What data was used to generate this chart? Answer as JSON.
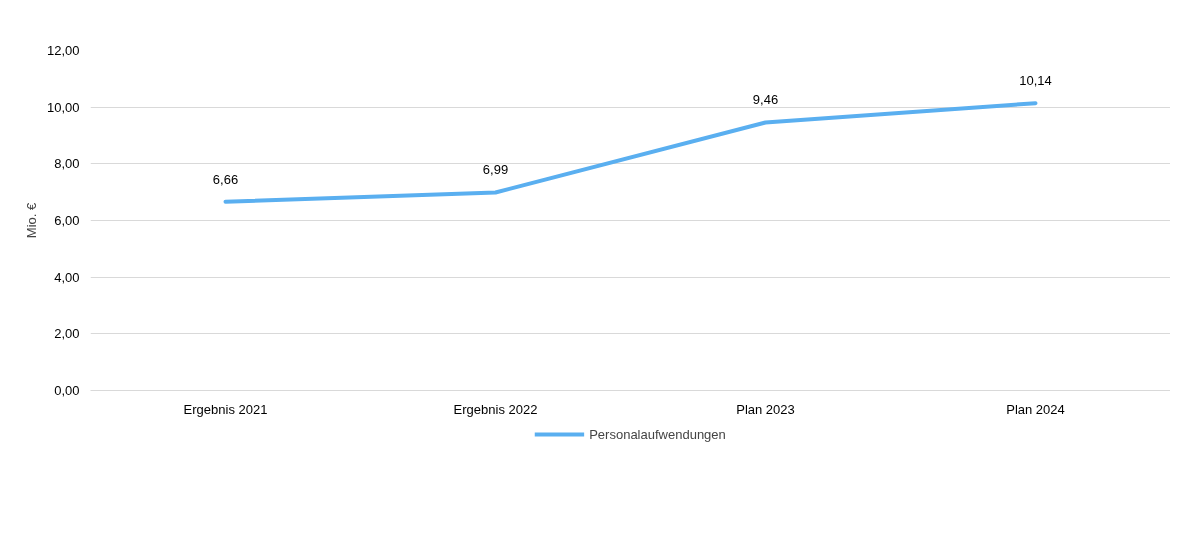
{
  "chart_data": {
    "type": "line",
    "ylabel": "Mio. €",
    "categories": [
      "Ergebnis 2021",
      "Ergebnis 2022",
      "Plan 2023",
      "Plan 2024"
    ],
    "series": [
      {
        "name": "Personalaufwendungen",
        "color": "#5aaff0",
        "values": [
          6.66,
          6.99,
          9.46,
          10.14
        ],
        "value_labels": [
          "6,66",
          "6,99",
          "9,46",
          "10,14"
        ]
      }
    ],
    "ylim": [
      0,
      12
    ],
    "yticks": [
      {
        "value": 0,
        "label": "0,00"
      },
      {
        "value": 2,
        "label": "2,00"
      },
      {
        "value": 4,
        "label": "4,00"
      },
      {
        "value": 6,
        "label": "6,00"
      },
      {
        "value": 8,
        "label": "8,00"
      },
      {
        "value": 10,
        "label": "10,00"
      },
      {
        "value": 12,
        "label": "12,00"
      }
    ],
    "grid": "y",
    "legend": "bottom",
    "marker": "none",
    "line_style": "solid"
  }
}
